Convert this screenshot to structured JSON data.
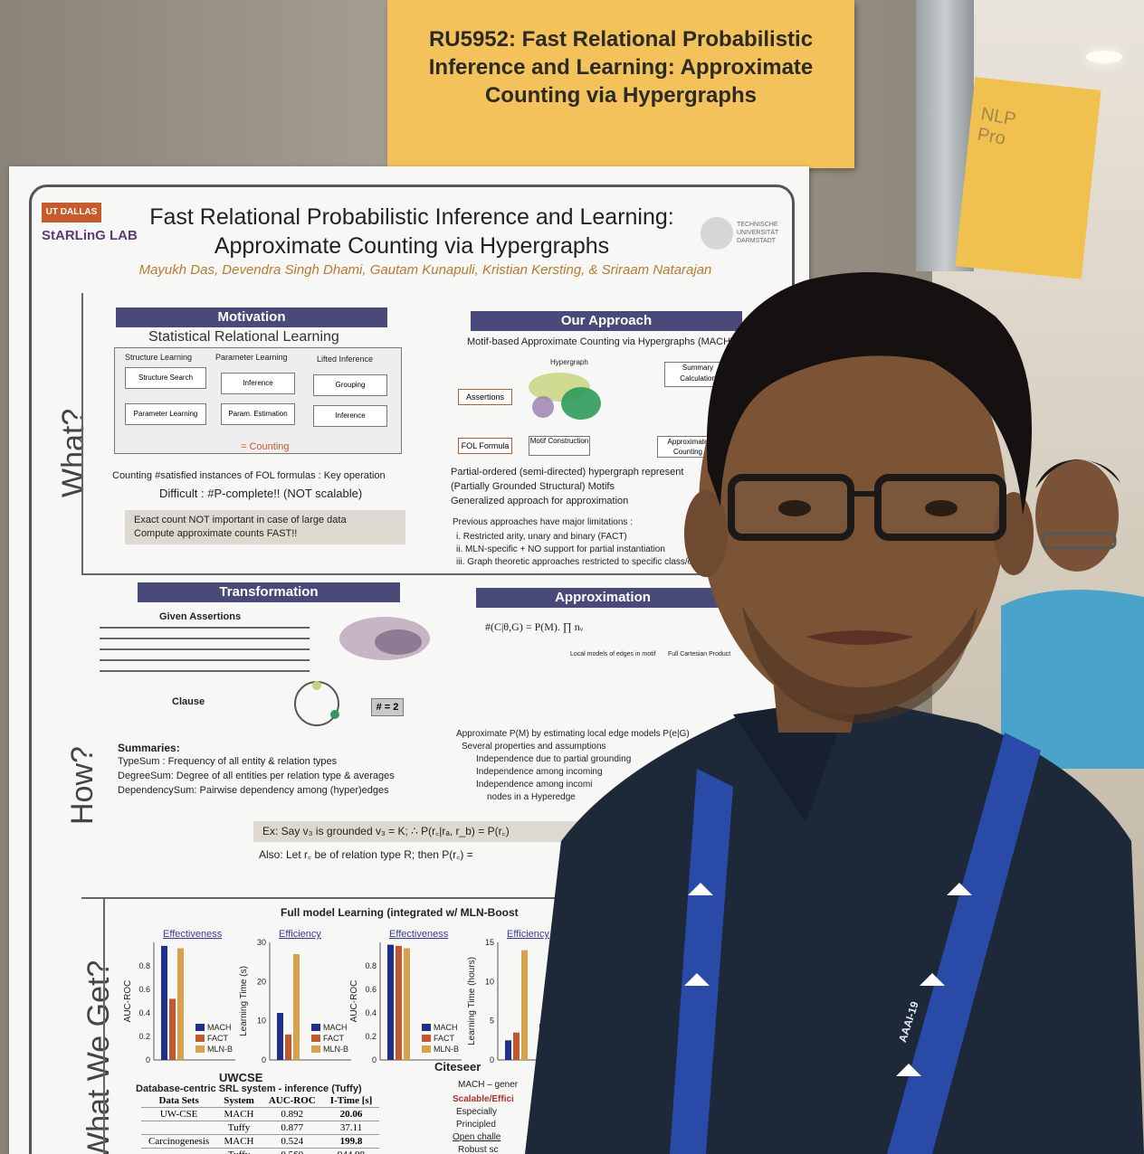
{
  "sign": {
    "text": "RU5952: Fast Relational Probabilistic\nInference and Learning: Approximate\nCounting via Hypergraphs"
  },
  "note": {
    "text": "NLP\nPro"
  },
  "poster": {
    "logo_left_top": "UT DALLAS",
    "logo_left_bottom": "StARLinG LAB",
    "logo_right": "TECHNISCHE\nUNIVERSITÄT\nDARMSTADT",
    "title": "Fast Relational Probabilistic Inference and Learning:\nApproximate Counting via Hypergraphs",
    "authors": "Mayukh Das, Devendra Singh Dhami, Gautam Kunapuli, Kristian Kersting, & Sriraam Natarajan",
    "side_labels": [
      "What?",
      "How?",
      "What We Get?"
    ],
    "motivation": {
      "header": "Motivation",
      "subtitle": "Statistical Relational Learning",
      "columns": [
        "Structure Learning",
        "Parameter Learning",
        "Lifted Inference"
      ],
      "cells": [
        "Structure Search",
        "Parameter Learning",
        "Inference",
        "Param. Estimation",
        "Grouping",
        "Inference"
      ],
      "counting_legend": "= Counting",
      "line1": "Counting #satisfied instances of FOL formulas : Key operation",
      "line2": "Difficult : #P-complete!! (NOT scalable)",
      "callout": "Exact count NOT important in case of large data\nCompute approximate counts FAST!!"
    },
    "approach": {
      "header": "Our Approach",
      "subtitle": "Motif-based Approximate Counting via Hypergraphs (MACH)",
      "nodes": [
        "Assertions",
        "Hypergraph",
        "Summary Calculation",
        "FOL Formula",
        "Motif Construction",
        "Approximate Counting"
      ],
      "bullets": [
        "Partial-ordered (semi-directed) hypergraph represent",
        "(Partially Grounded Structural) Motifs",
        "Generalized approach for approximation"
      ],
      "prev_header": "Previous approaches have major limitations :",
      "prev": [
        "i.   Restricted arity, unary and binary (FACT)",
        "ii.  MLN-specific + NO support for partial instantiation",
        "iii. Graph theoretic approaches restricted to specific class/orde"
      ]
    },
    "transformation": {
      "header": "Transformation",
      "given": "Given Assertions",
      "clause": "Clause",
      "result": "# = 2",
      "summaries_header": "Summaries:",
      "summaries": [
        "TypeSum : Frequency of all entity & relation types",
        "DegreeSum: Degree of all entities per relation type & averages",
        "DependencySum: Pairwise dependency among (hyper)edges"
      ]
    },
    "approximation": {
      "header": "Approximation",
      "formula": "#(C|θ,G) = P(M). ∏ nᵥ",
      "local_label": "Local models of edges in motif",
      "cart_label": "Full Cartesian Product",
      "estimate": "Approximate P(M) by estimating local edge models P(e|G)",
      "assump_header": "Several properties and assumptions",
      "assumptions": [
        "Independence due to partial grounding",
        "Independence among incoming",
        "Independence among incomi",
        "nodes in a Hyperedge"
      ]
    },
    "example": {
      "line1": "Ex: Say v₃ is grounded v₃ = K; ∴ P(r꜀|rₐ, r_b) = P(r꜀)",
      "line2": "Also: Let r꜀ be of  relation type R;  then P(r꜀) ="
    },
    "results": {
      "header": "Full model Learning (integrated w/ MLN-Boost",
      "dataset_labels": [
        "UWCSE",
        "Citeseer"
      ],
      "mach_desc": "MACH – gener",
      "scal": "Scalable/Effici",
      "bullets": [
        "Especially",
        "Principled"
      ],
      "open": "Open challe",
      "robust": "Robust sc",
      "table_header": "Database-centric SRL system - inference (Tuffy)"
    }
  },
  "chart_data": [
    {
      "type": "bar",
      "title": "Effectiveness",
      "xlabel": "UWCSE",
      "ylabel": "AUC-ROC",
      "ylim": [
        0,
        1
      ],
      "categories": [
        "UWCSE"
      ],
      "series": [
        {
          "name": "MACH",
          "values": [
            0.97
          ]
        },
        {
          "name": "FACT",
          "values": [
            0.52
          ]
        },
        {
          "name": "MLN-B",
          "values": [
            0.95
          ]
        }
      ],
      "yticks": [
        "0",
        "0.2",
        "0.4",
        "0.6",
        "0.8"
      ],
      "legend": "bottom-right"
    },
    {
      "type": "bar",
      "title": "Efficiency",
      "xlabel": "UWCSE",
      "ylabel": "Learning Time (s)",
      "ylim": [
        0,
        30
      ],
      "categories": [
        "UWCSE"
      ],
      "series": [
        {
          "name": "MACH",
          "values": [
            12
          ]
        },
        {
          "name": "FACT",
          "values": [
            6.5
          ]
        },
        {
          "name": "MLN-B",
          "values": [
            27
          ]
        }
      ],
      "yticks": [
        "0",
        "10",
        "20",
        "30"
      ],
      "legend": "bottom-right"
    },
    {
      "type": "bar",
      "title": "Effectiveness",
      "xlabel": "Citeseer",
      "ylabel": "AUC-ROC",
      "ylim": [
        0,
        1
      ],
      "categories": [
        "Citeseer"
      ],
      "series": [
        {
          "name": "MACH",
          "values": [
            0.98
          ]
        },
        {
          "name": "FACT",
          "values": [
            0.97
          ]
        },
        {
          "name": "MLN-B",
          "values": [
            0.95
          ]
        }
      ],
      "yticks": [
        "0",
        "0.2",
        "0.4",
        "0.6",
        "0.8"
      ],
      "legend": "bottom-right"
    },
    {
      "type": "bar",
      "title": "Efficiency",
      "xlabel": "Citeseer",
      "ylabel": "Learning Time (hours)",
      "ylim": [
        0,
        15
      ],
      "categories": [
        "Citeseer"
      ],
      "series": [
        {
          "name": "MACH",
          "values": [
            2.5
          ]
        },
        {
          "name": "FACT",
          "values": [
            3.5
          ]
        },
        {
          "name": "MLN-B",
          "values": [
            14
          ]
        }
      ],
      "yticks": [
        "0",
        "5",
        "10",
        "15"
      ],
      "legend": "bottom-right"
    },
    {
      "type": "table",
      "title": "Database-centric SRL system - inference (Tuffy)",
      "columns": [
        "Data Sets",
        "System",
        "AUC-ROC",
        "I-Time [s]"
      ],
      "rows": [
        [
          "UW-CSE",
          "MACH",
          "0.892",
          "20.06"
        ],
        [
          "",
          "Tuffy",
          "0.877",
          "37.11"
        ],
        [
          "Carcinogenesis",
          "MACH",
          "0.524",
          "199.8"
        ],
        [
          "",
          "Tuffy",
          "0.560",
          "944.98"
        ]
      ]
    }
  ],
  "lanyard": {
    "text": "AAAI-19"
  },
  "colors": {
    "sign": "#f3c25a",
    "header": "#4a4a7a",
    "mach": "#1f2f8a",
    "fact": "#c2582f",
    "mln": "#d6a24e",
    "shirt": "#1d2838",
    "lanyard": "#2a4aa8"
  }
}
